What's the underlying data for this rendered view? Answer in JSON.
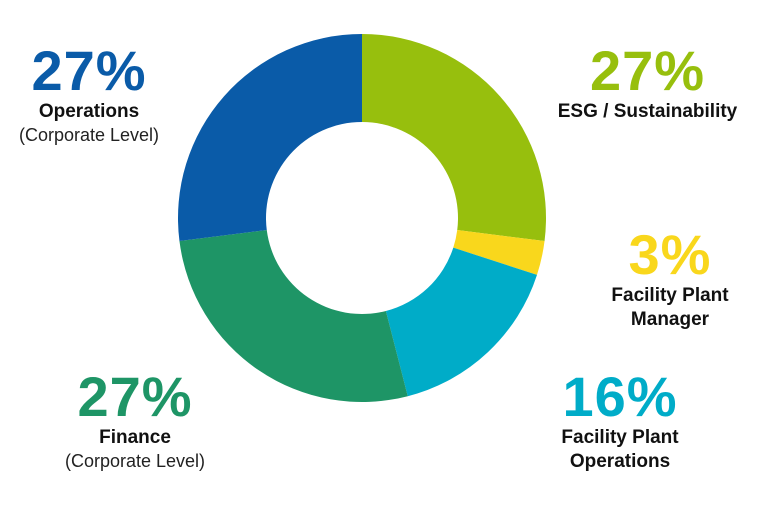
{
  "chart_data": {
    "type": "pie",
    "donut": true,
    "start": "top, clockwise",
    "slices": [
      {
        "label": "ESG / Sustainability",
        "sublabel": "",
        "value": 27,
        "display": "27%",
        "color": "#97bf0d"
      },
      {
        "label": "Facility Plant Manager",
        "sublabel": "",
        "value": 3,
        "display": "3%",
        "color": "#f9d71c"
      },
      {
        "label": "Facility Plant Operations",
        "sublabel": "",
        "value": 16,
        "display": "16%",
        "color": "#00acc8"
      },
      {
        "label": "Finance",
        "sublabel": "(Corporate Level)",
        "value": 27,
        "display": "27%",
        "color": "#1e9566"
      },
      {
        "label": "Operations",
        "sublabel": "(Corporate Level)",
        "value": 27,
        "display": "27%",
        "color": "#0a5ba8"
      }
    ]
  },
  "labels": {
    "esg": {
      "pct": "27%",
      "name": "ESG / Sustainability"
    },
    "fpm": {
      "pct": "3%",
      "name_line1": "Facility Plant",
      "name_line2": "Manager"
    },
    "fpo": {
      "pct": "16%",
      "name_line1": "Facility Plant",
      "name_line2": "Operations"
    },
    "fin": {
      "pct": "27%",
      "name": "Finance",
      "sub": "(Corporate Level)"
    },
    "ops": {
      "pct": "27%",
      "name": "Operations",
      "sub": "(Corporate Level)"
    }
  }
}
